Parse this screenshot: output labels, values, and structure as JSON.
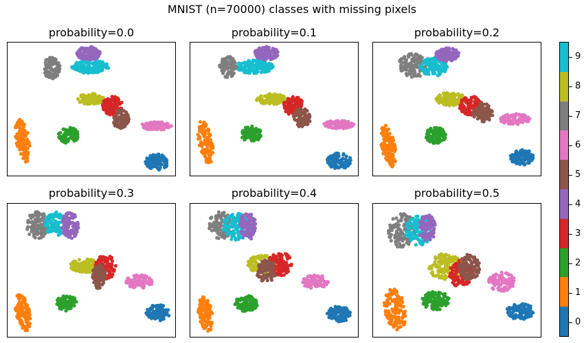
{
  "figure": {
    "suptitle": "MNIST (n=70000) classes with missing pixels"
  },
  "colors": {
    "0": "#1f77b4",
    "1": "#ff7f0e",
    "2": "#2ca02c",
    "3": "#d62728",
    "4": "#9467bd",
    "5": "#8c564b",
    "6": "#e377c2",
    "7": "#7f7f7f",
    "8": "#bcbd22",
    "9": "#17becf"
  },
  "colorbar": {
    "ticks": [
      "0",
      "1",
      "2",
      "3",
      "4",
      "5",
      "6",
      "7",
      "8",
      "9"
    ]
  },
  "chart_data": [
    {
      "type": "scatter",
      "title": "probability=0.0",
      "xlabel": "",
      "ylabel": "",
      "grid": false,
      "series": [
        {
          "name": "0",
          "values": [
            [
              0.88,
              0.89
            ]
          ]
        },
        {
          "name": "1",
          "values": [
            [
              0.08,
              0.74
            ]
          ]
        },
        {
          "name": "2",
          "values": [
            [
              0.36,
              0.7
            ]
          ]
        },
        {
          "name": "3",
          "values": [
            [
              0.62,
              0.45
            ]
          ]
        },
        {
          "name": "4",
          "values": [
            [
              0.5,
              0.08
            ]
          ]
        },
        {
          "name": "5",
          "values": [
            [
              0.67,
              0.57
            ]
          ]
        },
        {
          "name": "6",
          "values": [
            [
              0.88,
              0.62
            ]
          ]
        },
        {
          "name": "7",
          "values": [
            [
              0.26,
              0.18
            ]
          ]
        },
        {
          "name": "8",
          "values": [
            [
              0.49,
              0.42
            ]
          ]
        },
        {
          "name": "9",
          "values": [
            [
              0.48,
              0.18
            ]
          ]
        }
      ]
    },
    {
      "type": "scatter",
      "title": "probability=0.1",
      "xlabel": "",
      "ylabel": "",
      "grid": false,
      "series": []
    },
    {
      "type": "scatter",
      "title": "probability=0.2",
      "xlabel": "",
      "ylabel": "",
      "grid": false,
      "series": []
    },
    {
      "type": "scatter",
      "title": "probability=0.3",
      "xlabel": "",
      "ylabel": "",
      "grid": false,
      "series": []
    },
    {
      "type": "scatter",
      "title": "probability=0.4",
      "xlabel": "",
      "ylabel": "",
      "grid": false,
      "series": []
    },
    {
      "type": "scatter",
      "title": "probability=0.5",
      "xlabel": "",
      "ylabel": "",
      "grid": false,
      "series": []
    }
  ]
}
